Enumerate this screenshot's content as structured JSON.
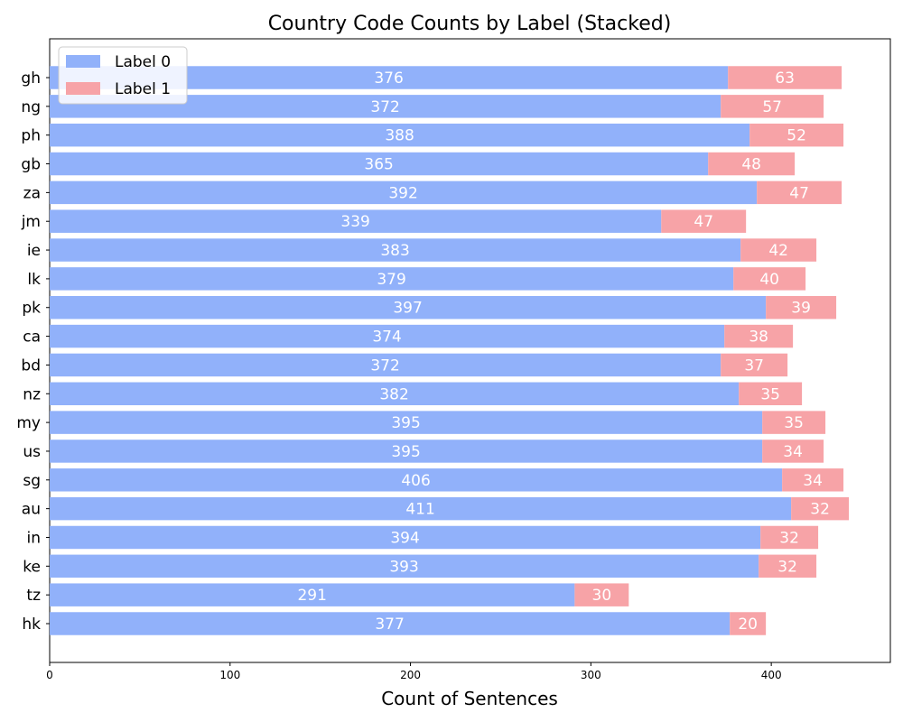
{
  "chart_data": {
    "type": "bar",
    "orientation": "horizontal",
    "stacked": true,
    "title": "Country Code Counts by Label (Stacked)",
    "xlabel": "Count of Sentences",
    "ylabel": "",
    "xlim": [
      0,
      466
    ],
    "xticks": [
      0,
      100,
      200,
      300,
      400
    ],
    "grid": false,
    "legend_position": "top-left",
    "categories": [
      "gh",
      "ng",
      "ph",
      "gb",
      "za",
      "jm",
      "ie",
      "lk",
      "pk",
      "ca",
      "bd",
      "nz",
      "my",
      "us",
      "sg",
      "au",
      "in",
      "ke",
      "tz",
      "hk"
    ],
    "series": [
      {
        "name": "Label 0",
        "color": "#91b1fa",
        "values": [
          376,
          372,
          388,
          365,
          392,
          339,
          383,
          379,
          397,
          374,
          372,
          382,
          395,
          395,
          406,
          411,
          394,
          393,
          291,
          377
        ]
      },
      {
        "name": "Label 1",
        "color": "#f7a3a7",
        "values": [
          63,
          57,
          52,
          48,
          47,
          47,
          42,
          40,
          39,
          38,
          37,
          35,
          35,
          34,
          34,
          32,
          32,
          32,
          30,
          20
        ]
      }
    ]
  }
}
